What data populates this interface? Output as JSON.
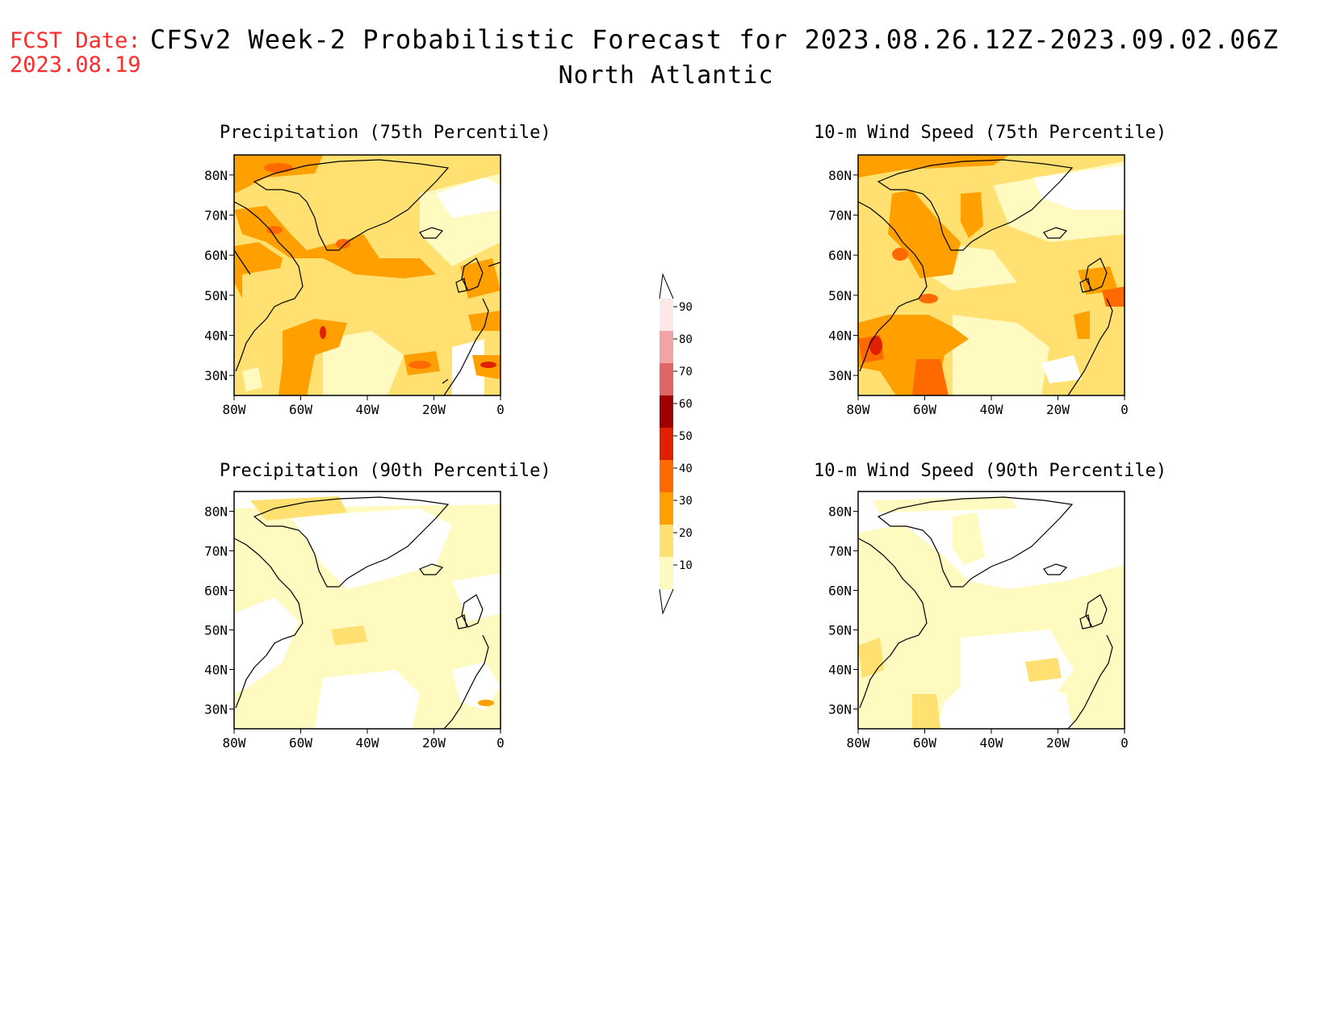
{
  "fcst_date": {
    "label": "FCST Date:",
    "value": "2023.08.19"
  },
  "title": "CFSv2 Week-2 Probabilistic Forecast for 2023.08.26.12Z-2023.09.02.06Z",
  "subtitle": "North Atlantic",
  "panels": [
    {
      "title": "Precipitation (75th Percentile)"
    },
    {
      "title": "10-m Wind Speed (75th Percentile)"
    },
    {
      "title": "Precipitation (90th Percentile)"
    },
    {
      "title": "10-m Wind Speed (90th Percentile)"
    }
  ],
  "map_axes": {
    "lat_ticks": [
      "80N",
      "70N",
      "60N",
      "50N",
      "40N",
      "30N"
    ],
    "lon_ticks": [
      "80W",
      "60W",
      "40W",
      "20W",
      "0"
    ]
  },
  "colorbar": {
    "levels": [
      "90",
      "80",
      "70",
      "60",
      "50",
      "40",
      "30",
      "20",
      "10"
    ],
    "colors": [
      "#fde8e8",
      "#f2a3a3",
      "#e06666",
      "#a00000",
      "#e02000",
      "#ff6a00",
      "#ffa000",
      "#ffe070",
      "#fffac0"
    ]
  }
}
